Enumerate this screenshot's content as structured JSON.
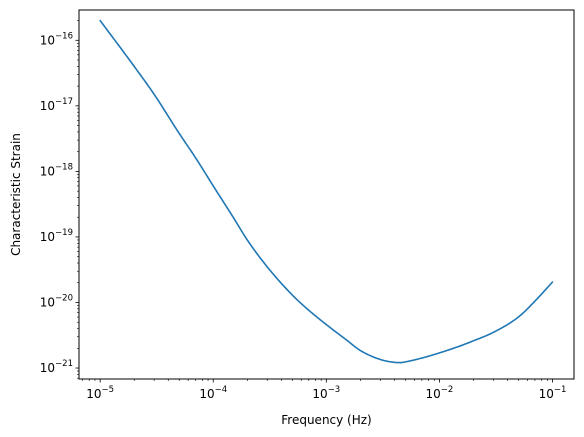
{
  "chart_data": {
    "type": "line",
    "title": "",
    "xlabel": "Frequency (Hz)",
    "ylabel": "Characteristic Strain",
    "xscale": "log",
    "yscale": "log",
    "xlim": [
      6.5e-06,
      0.155
    ],
    "ylim": [
      6.8e-22,
      2.9e-16
    ],
    "grid": false,
    "x_ticks": [
      {
        "base": "10",
        "exp": "−5"
      },
      {
        "base": "10",
        "exp": "−4"
      },
      {
        "base": "10",
        "exp": "−3"
      },
      {
        "base": "10",
        "exp": "−2"
      },
      {
        "base": "10",
        "exp": "−1"
      }
    ],
    "y_ticks": [
      {
        "base": "10",
        "exp": "−21"
      },
      {
        "base": "10",
        "exp": "−20"
      },
      {
        "base": "10",
        "exp": "−19"
      },
      {
        "base": "10",
        "exp": "−18"
      },
      {
        "base": "10",
        "exp": "−17"
      },
      {
        "base": "10",
        "exp": "−16"
      }
    ],
    "line_color": "#1f77b4",
    "series": [
      {
        "x": [
          1e-05,
          2e-05,
          3e-05,
          5e-05,
          7e-05,
          0.0001,
          0.00015,
          0.0002,
          0.0003,
          0.0005,
          0.0007,
          0.001,
          0.0015,
          0.002,
          0.003,
          0.004,
          0.0045,
          0.005,
          0.007,
          0.01,
          0.015,
          0.02,
          0.03,
          0.05,
          0.07,
          0.1
        ],
        "y": [
          2e-16,
          4e-17,
          1.5e-17,
          3.8e-18,
          1.6e-18,
          6e-19,
          2e-19,
          9e-20,
          3.5e-20,
          1.3e-20,
          7.6e-21,
          4.6e-21,
          2.7e-21,
          1.85e-21,
          1.35e-21,
          1.22e-21,
          1.21e-21,
          1.24e-21,
          1.42e-21,
          1.7e-21,
          2.15e-21,
          2.6e-21,
          3.5e-21,
          6e-21,
          1.05e-20,
          2.05e-20
        ]
      }
    ]
  }
}
